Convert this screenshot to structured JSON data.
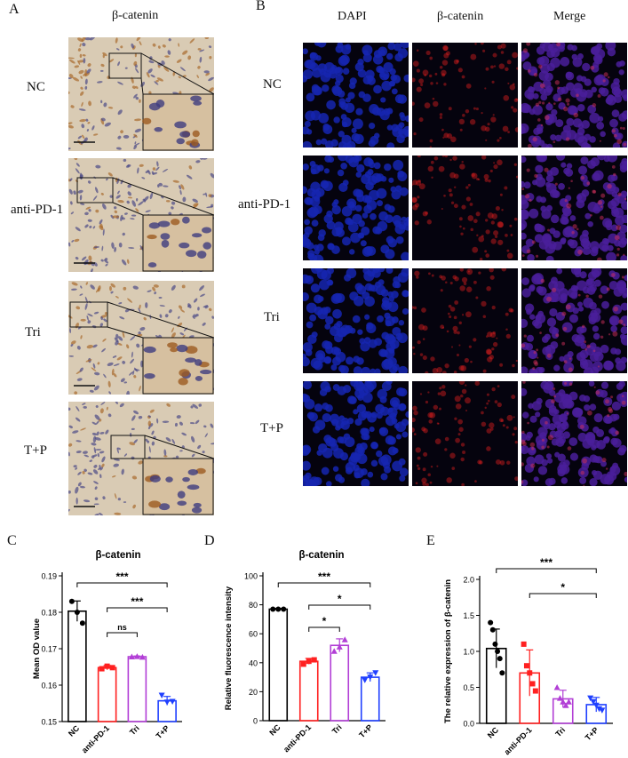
{
  "panels": {
    "A": {
      "letter": "A",
      "title": "β-catenin",
      "rows": [
        "NC",
        "anti-PD-1",
        "Tri",
        "T+P"
      ]
    },
    "B": {
      "letter": "B",
      "columns": [
        "DAPI",
        "β-catenin",
        "Merge"
      ],
      "rows": [
        "NC",
        "anti-PD-1",
        "Tri",
        "T+P"
      ]
    },
    "C": {
      "letter": "C"
    },
    "D": {
      "letter": "D"
    },
    "E": {
      "letter": "E"
    }
  },
  "colors": {
    "NC": "#000000",
    "anti-PD-1": "#ff2020",
    "Tri": "#b23fd6",
    "T+P": "#2040ff",
    "ihc_base": "#d9cbb4",
    "dapi": "#1626b0",
    "catenin": "#7a1010",
    "merge": "#4a1e9a"
  },
  "chart_data": [
    {
      "type": "bar",
      "title": "β-catenin",
      "ylabel": "Mean OD value",
      "xlabel": "",
      "categories": [
        "NC",
        "anti-PD-1",
        "Tri",
        "T+P"
      ],
      "values": [
        0.1803,
        0.1648,
        0.1678,
        0.1557
      ],
      "errors": [
        0.0028,
        0.0006,
        0.0002,
        0.0012
      ],
      "points": [
        [
          0.183,
          0.18,
          0.177
        ],
        [
          0.1645,
          0.1652,
          0.1648
        ],
        [
          0.1678,
          0.1679,
          0.1677
        ],
        [
          0.1572,
          0.1553,
          0.1555
        ]
      ],
      "ylim": [
        0.15,
        0.19
      ],
      "yticks": [
        "0.15",
        "0.16",
        "0.17",
        "0.18",
        "0.19"
      ],
      "significance": [
        {
          "from": "NC",
          "to": "T+P",
          "label": "***"
        },
        {
          "from": "anti-PD-1",
          "to": "T+P",
          "label": "***"
        },
        {
          "from": "anti-PD-1",
          "to": "Tri",
          "label": "ns"
        }
      ]
    },
    {
      "type": "bar",
      "title": "β-catenin",
      "ylabel": "Relative fluorescence intensity",
      "xlabel": "",
      "categories": [
        "NC",
        "anti-PD-1",
        "Tri",
        "T+P"
      ],
      "values": [
        77,
        41,
        52,
        30
      ],
      "errors": [
        0.5,
        2,
        4.5,
        3
      ],
      "points": [
        [
          77,
          77,
          77
        ],
        [
          39,
          41,
          42
        ],
        [
          48,
          51,
          56
        ],
        [
          28,
          30,
          33
        ]
      ],
      "ylim": [
        0,
        100
      ],
      "yticks": [
        "0",
        "20",
        "40",
        "60",
        "80",
        "100"
      ],
      "significance": [
        {
          "from": "NC",
          "to": "T+P",
          "label": "***"
        },
        {
          "from": "anti-PD-1",
          "to": "T+P",
          "label": "*"
        },
        {
          "from": "anti-PD-1",
          "to": "Tri",
          "label": "*"
        }
      ]
    },
    {
      "type": "bar",
      "title": "",
      "ylabel": "The relative expression of β-catenin",
      "xlabel": "",
      "categories": [
        "NC",
        "anti-PD-1",
        "Tri",
        "T+P"
      ],
      "values": [
        1.04,
        0.7,
        0.34,
        0.26
      ],
      "errors": [
        0.27,
        0.32,
        0.12,
        0.1
      ],
      "points": [
        [
          1.4,
          1.3,
          1.1,
          1.0,
          0.9,
          0.7
        ],
        [
          1.1,
          0.8,
          0.7,
          0.55,
          0.45
        ],
        [
          0.5,
          0.35,
          0.3,
          0.25,
          0.3
        ],
        [
          0.35,
          0.3,
          0.25,
          0.2,
          0.18
        ]
      ],
      "ylim": [
        0,
        2.0
      ],
      "yticks": [
        "0.0",
        "0.5",
        "1.0",
        "1.5",
        "2.0"
      ],
      "significance": [
        {
          "from": "NC",
          "to": "T+P",
          "label": "***"
        },
        {
          "from": "anti-PD-1",
          "to": "T+P",
          "label": "*"
        }
      ]
    }
  ]
}
